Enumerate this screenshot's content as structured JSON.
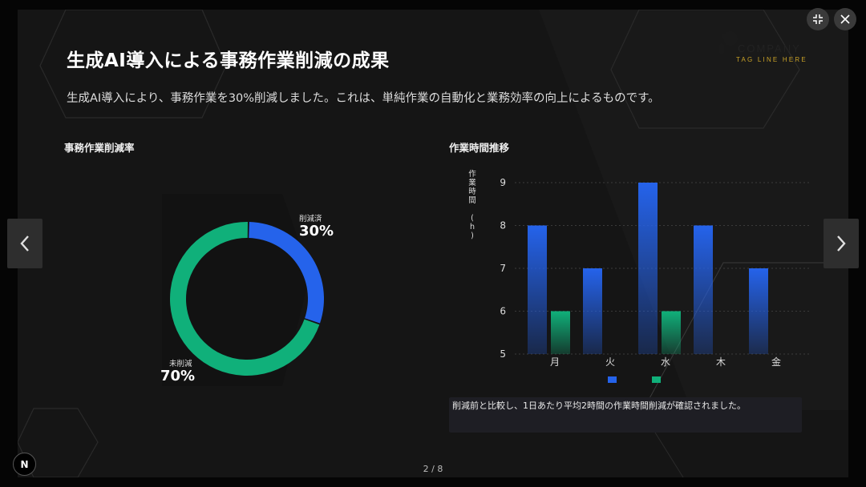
{
  "slide": {
    "title": "生成AI導入による事務作業削減の成果",
    "subtitle": "生成AI導入により、事務作業を30%削減しました。これは、単純作業の自動化と業務効率の向上によるものです。",
    "page_counter": "2 / 8"
  },
  "logo": {
    "name": "COMPANY",
    "tagline": "TAG LINE HERE"
  },
  "controls": {
    "collapse_icon": "collapse-icon",
    "close_icon": "close-icon",
    "prev_icon": "chevron-left-icon",
    "next_icon": "chevron-right-icon",
    "badge_label": "N"
  },
  "colors": {
    "accent_blue": "#2563eb",
    "accent_green": "#10b07a",
    "background": "#151515",
    "logo_gold": "#c9a227"
  },
  "chart_data": [
    {
      "type": "pie",
      "title": "事務作業削減率",
      "donut": true,
      "slices": [
        {
          "label": "削減済",
          "value": 30,
          "display": "30%",
          "color": "#2563eb"
        },
        {
          "label": "未削減",
          "value": 70,
          "display": "70%",
          "color": "#10b07a"
        }
      ]
    },
    {
      "type": "bar",
      "title": "作業時間推移",
      "ylabel": "作業時間 (h)",
      "categories": [
        "月",
        "火",
        "水",
        "木",
        "金"
      ],
      "ylim": [
        5,
        9
      ],
      "yticks": [
        5,
        6,
        7,
        8,
        9
      ],
      "grid": true,
      "legend": "bottom",
      "series": [
        {
          "values": [
            8,
            7,
            9,
            8,
            7
          ],
          "color": "#2563eb"
        },
        {
          "values": [
            6,
            null,
            6,
            null,
            null
          ],
          "color": "#10b07a"
        }
      ],
      "note": "削減前と比較し、1日あたり平均2時間の作業時間削減が確認されました。"
    }
  ]
}
